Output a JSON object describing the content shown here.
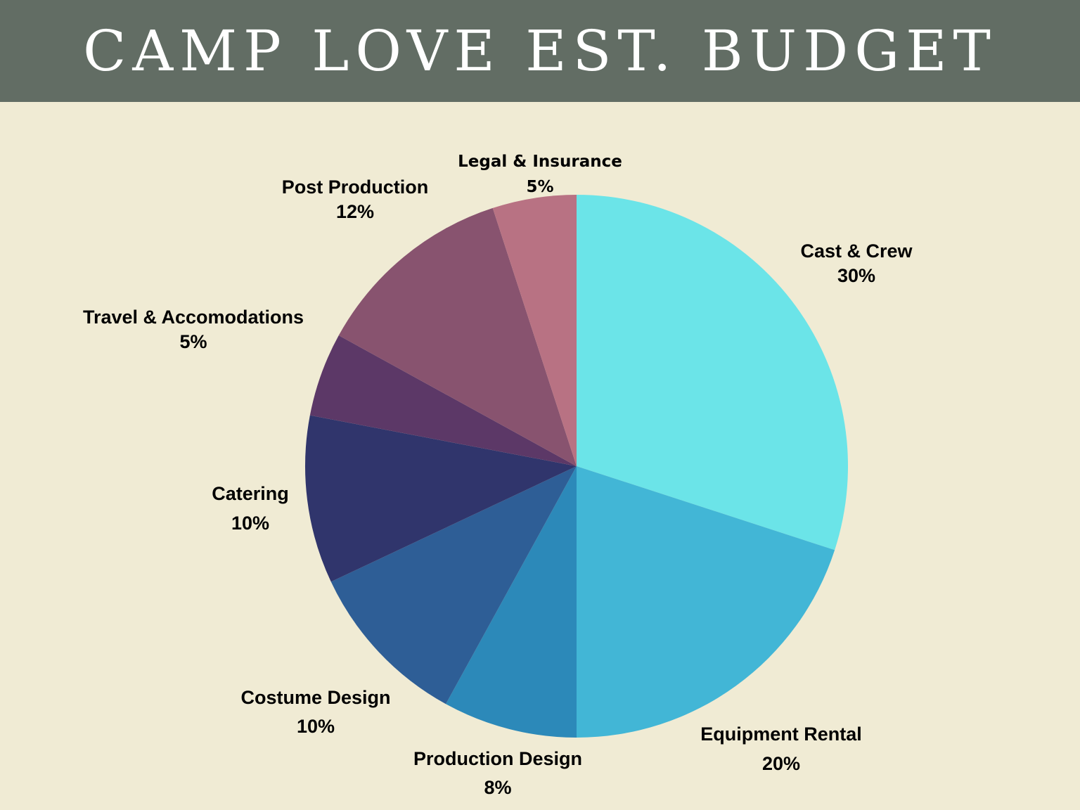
{
  "header": {
    "title": "CAMP LOVE EST. BUDGET",
    "background": "#626d64"
  },
  "chart_data": {
    "type": "pie",
    "title": "CAMP LOVE EST. BUDGET",
    "slices": [
      {
        "label": "Cast & Crew",
        "value": 30,
        "value_label": "30%",
        "color": "#6be4e8"
      },
      {
        "label": "Equipment Rental",
        "value": 20,
        "value_label": "20%",
        "color": "#42b6d6"
      },
      {
        "label": "Production Design",
        "value": 8,
        "value_label": "8%",
        "color": "#2c89b9"
      },
      {
        "label": "Costume Design",
        "value": 10,
        "value_label": "10%",
        "color": "#2e5e96"
      },
      {
        "label": "Catering",
        "value": 10,
        "value_label": "10%",
        "color": "#30356c"
      },
      {
        "label": "Travel & Accomodations",
        "value": 5,
        "value_label": "5%",
        "color": "#5c3867"
      },
      {
        "label": "Post Production",
        "value": 12,
        "value_label": "12%",
        "color": "#88536f"
      },
      {
        "label": "Legal & Insurance",
        "value": 5,
        "value_label": "5%",
        "color": "#b87283"
      }
    ]
  }
}
